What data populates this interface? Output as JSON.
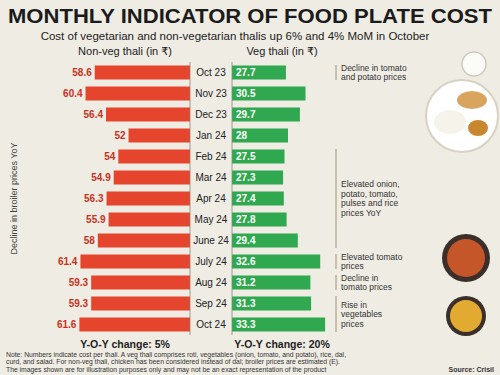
{
  "title": "MONTHLY INDICATOR OF FOOD PLATE COST",
  "subtitle": "Cost of vegetarian and non-vegetarian thalis up 6% and 4% MoM in October",
  "chart_data": [
    {
      "type": "bar",
      "orientation": "horizontal",
      "title": "Non-veg thali (in ₹)",
      "categories": [
        "Oct 23",
        "Nov 23",
        "Dec 23",
        "Jan 24",
        "Feb 24",
        "Mar 24",
        "Apr 24",
        "May 24",
        "June 24",
        "July 24",
        "Aug 24",
        "Sep 24",
        "Oct 24"
      ],
      "values": [
        58.6,
        60.4,
        56.4,
        52,
        54,
        54.9,
        56.3,
        55.9,
        58,
        61.4,
        59.3,
        59.3,
        61.6
      ],
      "color": "#e5452d",
      "xlim": [
        40,
        65
      ],
      "data_labels": true,
      "tick_labels": "y",
      "annotations": [
        {
          "text": [
            "Decline in broiler prices YoY"
          ],
          "from": "Oct 23",
          "to": "Oct 24"
        }
      ],
      "caption": "Y-O-Y change: 5%"
    },
    {
      "type": "bar",
      "orientation": "horizontal",
      "title": "Veg thali (in ₹)",
      "categories": [
        "Oct 23",
        "Nov 23",
        "Dec 23",
        "Jan 24",
        "Feb 24",
        "Mar 24",
        "Apr 24",
        "May 24",
        "June 24",
        "July 24",
        "Aug 24",
        "Sep 24",
        "Oct 24"
      ],
      "values": [
        27.7,
        30.5,
        29.7,
        28,
        27.5,
        27.3,
        27.4,
        27.8,
        29.4,
        32.6,
        31.2,
        31.3,
        33.3
      ],
      "color": "#2fa84f",
      "xlim": [
        20,
        35
      ],
      "data_labels": true,
      "tick_labels": false,
      "annotations": [
        {
          "text": [
            "Decline in tomato",
            "and potato prices"
          ],
          "from": "Oct 23",
          "to": "Oct 23"
        },
        {
          "text": [
            "Elevated onion,",
            "potato, tomato,",
            "pulses and rice",
            "prices YoY"
          ],
          "from": "Feb 24",
          "to": "June 24"
        },
        {
          "text": [
            "Elevated tomato",
            "prices"
          ],
          "from": "July 24",
          "to": "July 24"
        },
        {
          "text": [
            "Decline in",
            "tomato prices"
          ],
          "from": "Aug 24",
          "to": "Aug 24"
        },
        {
          "text": [
            "Rise in",
            "vegetables",
            "prices"
          ],
          "from": "Sep 24",
          "to": "Oct 24"
        }
      ],
      "caption": "Y-O-Y change: 20%"
    }
  ],
  "note": [
    "Note: Numbers indicate cost per thali. A veg thali comprises roti, vegetables (onion, tomato, and potato), rice, dal,",
    "curd, and salad. For non-veg thali, chicken has been considered instead of dal; broiler prices are estimated (E).",
    "The images shown are for illustration purposes only and may not be an exact representation of the product"
  ],
  "source": "Source: Crisil"
}
